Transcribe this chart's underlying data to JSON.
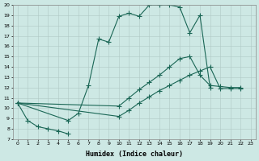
{
  "xlabel": "Humidex (Indice chaleur)",
  "bg_color": "#cde8e4",
  "line_color": "#1a6655",
  "xlim": [
    -0.5,
    23.5
  ],
  "ylim": [
    7,
    20
  ],
  "series1_x": [
    0,
    1,
    2,
    3,
    4,
    5
  ],
  "series1_y": [
    10.5,
    8.8,
    8.2,
    8.0,
    7.8,
    7.5
  ],
  "series2_x": [
    0,
    5,
    6,
    7,
    8,
    9,
    10,
    11,
    12,
    13,
    14,
    15,
    16,
    17,
    18,
    19
  ],
  "series2_y": [
    10.5,
    8.8,
    9.5,
    12.2,
    16.7,
    16.4,
    18.9,
    19.2,
    18.9,
    20.0,
    20.0,
    20.0,
    19.8,
    17.3,
    19.0,
    12.0
  ],
  "series3_x": [
    0,
    10,
    11,
    12,
    13,
    14,
    15,
    16,
    17,
    18,
    19,
    20,
    21,
    22
  ],
  "series3_y": [
    10.5,
    10.2,
    11.0,
    11.8,
    12.5,
    13.2,
    14.0,
    14.8,
    15.0,
    13.2,
    12.2,
    12.1,
    12.0,
    12.0
  ],
  "series4_x": [
    0,
    10,
    11,
    12,
    13,
    14,
    15,
    16,
    17,
    18,
    19,
    20,
    21,
    22
  ],
  "series4_y": [
    10.5,
    9.2,
    9.8,
    10.5,
    11.1,
    11.7,
    12.2,
    12.7,
    13.2,
    13.6,
    14.0,
    11.9,
    11.9,
    11.9
  ],
  "yticks": [
    7,
    8,
    9,
    10,
    11,
    12,
    13,
    14,
    15,
    16,
    17,
    18,
    19,
    20
  ],
  "xticks": [
    0,
    1,
    2,
    3,
    4,
    5,
    6,
    7,
    8,
    9,
    10,
    11,
    12,
    13,
    14,
    15,
    16,
    17,
    18,
    19,
    20,
    21,
    22,
    23
  ]
}
